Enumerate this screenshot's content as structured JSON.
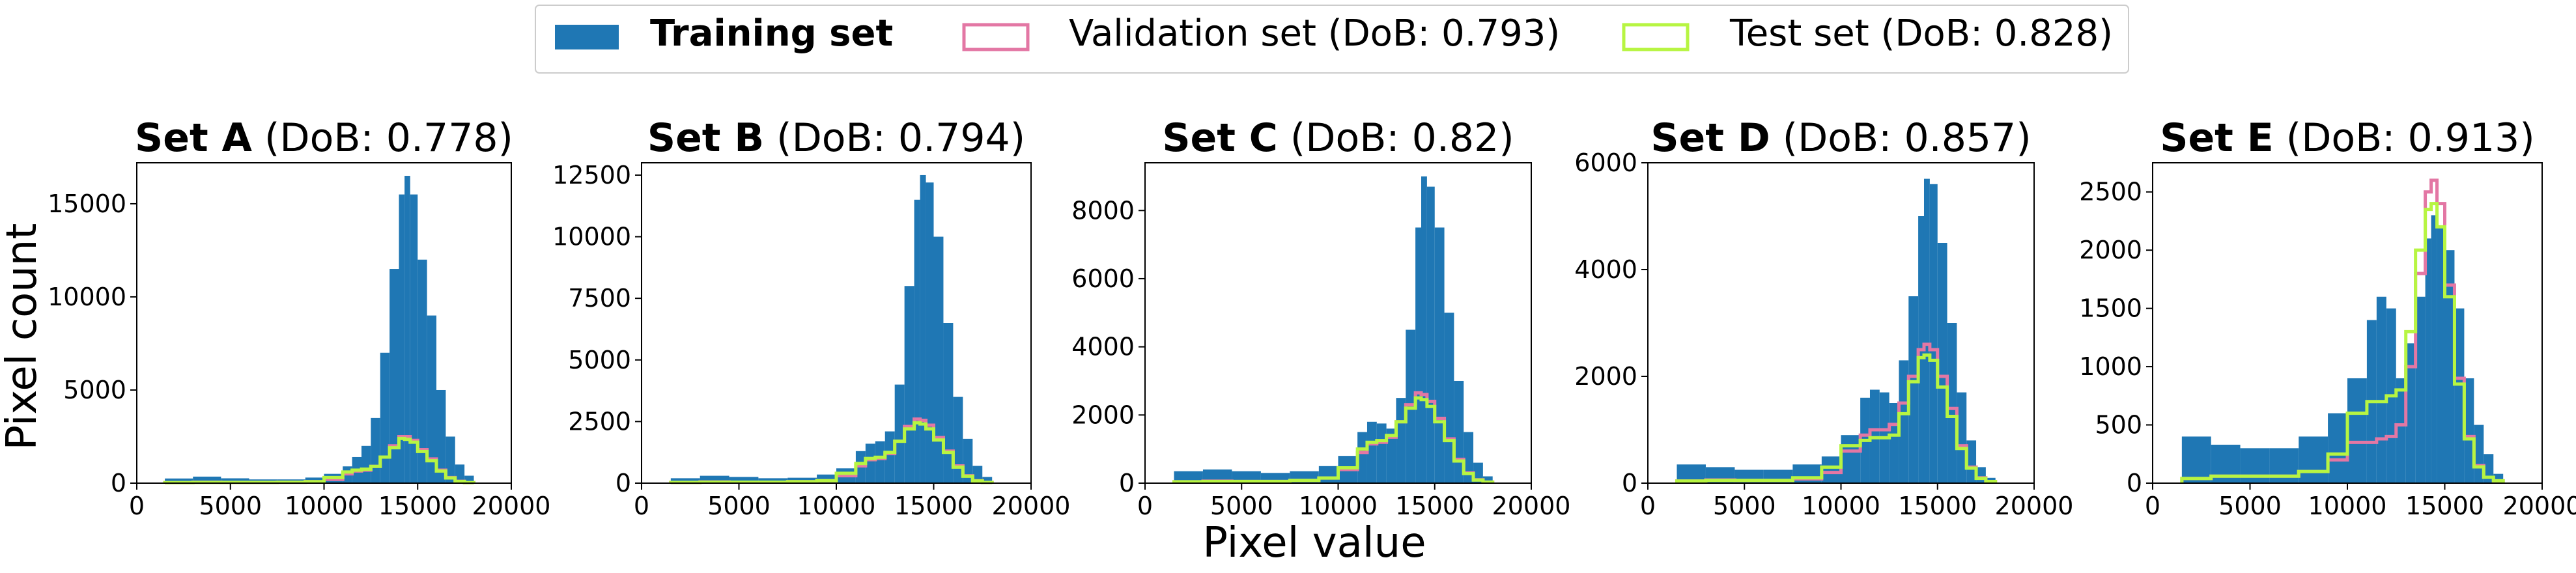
{
  "figure": {
    "ylabel": "Pixel count",
    "xlabel": "Pixel value",
    "legend": [
      {
        "label": "Training set",
        "style": "filled",
        "color": "#1f77b4",
        "bold": true
      },
      {
        "label": "Validation set (DoB: 0.793)",
        "style": "step",
        "color": "#e377a4"
      },
      {
        "label": "Test set (DoB: 0.828)",
        "style": "step",
        "color": "#b7f542"
      }
    ]
  },
  "chart_data": [
    {
      "type": "histogram",
      "title_bold": "Set A",
      "title_rest": " (DoB: 0.778)",
      "xlim": [
        0,
        20000
      ],
      "xticks": [
        0,
        5000,
        10000,
        15000,
        20000
      ],
      "ylim": [
        0,
        17200
      ],
      "yticks": [
        0,
        5000,
        10000,
        15000
      ],
      "x": [
        1500,
        3000,
        4500,
        6000,
        7500,
        9000,
        10000,
        11000,
        11500,
        12000,
        12500,
        13000,
        13500,
        14000,
        14300,
        14600,
        15000,
        15500,
        16000,
        16500,
        17000,
        17500,
        18000
      ],
      "series": [
        {
          "name": "Training set",
          "values": [
            250,
            350,
            260,
            200,
            200,
            300,
            500,
            900,
            1400,
            2000,
            3500,
            7000,
            11500,
            15500,
            16500,
            15500,
            12000,
            9000,
            5000,
            2500,
            1000,
            400,
            0
          ]
        },
        {
          "name": "Validation set",
          "values": [
            30,
            50,
            40,
            40,
            50,
            80,
            200,
            500,
            650,
            700,
            900,
            1400,
            2000,
            2500,
            2500,
            2300,
            1800,
            1300,
            700,
            300,
            100,
            30,
            0
          ]
        },
        {
          "name": "Test set",
          "values": [
            30,
            40,
            40,
            40,
            50,
            80,
            300,
            600,
            700,
            750,
            900,
            1400,
            1900,
            2400,
            2350,
            2200,
            1700,
            1200,
            650,
            280,
            90,
            30,
            0
          ]
        }
      ]
    },
    {
      "type": "histogram",
      "title_bold": "Set B",
      "title_rest": " (DoB: 0.794)",
      "xlim": [
        0,
        20000
      ],
      "xticks": [
        0,
        5000,
        10000,
        15000,
        20000
      ],
      "ylim": [
        0,
        13000
      ],
      "yticks": [
        0,
        2500,
        5000,
        7500,
        10000,
        12500
      ],
      "x": [
        1500,
        3000,
        4500,
        6000,
        7500,
        9000,
        10000,
        11000,
        11500,
        12000,
        12500,
        13000,
        13500,
        14000,
        14300,
        14600,
        15000,
        15500,
        16000,
        16500,
        17000,
        17500,
        18000
      ],
      "series": [
        {
          "name": "Training set",
          "values": [
            200,
            300,
            250,
            200,
            220,
            350,
            600,
            1300,
            1600,
            1700,
            2100,
            4000,
            8000,
            11500,
            12500,
            12200,
            10000,
            6500,
            3500,
            1800,
            700,
            250,
            0
          ]
        },
        {
          "name": "Validation set",
          "values": [
            30,
            50,
            40,
            40,
            60,
            100,
            300,
            700,
            950,
            1000,
            1200,
            1700,
            2300,
            2600,
            2550,
            2350,
            1850,
            1300,
            700,
            300,
            100,
            30,
            0
          ]
        },
        {
          "name": "Test set",
          "values": [
            30,
            40,
            40,
            40,
            60,
            100,
            400,
            800,
            1000,
            1050,
            1250,
            1700,
            2200,
            2450,
            2400,
            2200,
            1750,
            1250,
            650,
            280,
            90,
            30,
            0
          ]
        }
      ]
    },
    {
      "type": "histogram",
      "title_bold": "Set C",
      "title_rest": " (DoB: 0.82)",
      "xlim": [
        0,
        20000
      ],
      "xticks": [
        0,
        5000,
        10000,
        15000,
        20000
      ],
      "ylim": [
        0,
        9400
      ],
      "yticks": [
        0,
        2000,
        4000,
        6000,
        8000
      ],
      "x": [
        1500,
        3000,
        4500,
        6000,
        7500,
        9000,
        10000,
        11000,
        11500,
        12000,
        12500,
        13000,
        13500,
        14000,
        14300,
        14600,
        15000,
        15500,
        16000,
        16500,
        17000,
        17500,
        18000
      ],
      "series": [
        {
          "name": "Training set",
          "values": [
            350,
            400,
            350,
            300,
            350,
            500,
            800,
            1500,
            1800,
            1750,
            1600,
            2500,
            4500,
            7500,
            9000,
            8700,
            7500,
            5000,
            3000,
            1500,
            600,
            200,
            0
          ]
        },
        {
          "name": "Validation set",
          "values": [
            40,
            60,
            50,
            50,
            80,
            150,
            400,
            900,
            1150,
            1200,
            1350,
            1800,
            2300,
            2650,
            2600,
            2400,
            1900,
            1300,
            700,
            300,
            100,
            30,
            0
          ]
        },
        {
          "name": "Test set",
          "values": [
            40,
            50,
            50,
            50,
            80,
            150,
            450,
            1000,
            1200,
            1250,
            1400,
            1800,
            2200,
            2500,
            2450,
            2250,
            1800,
            1250,
            650,
            280,
            90,
            30,
            0
          ]
        }
      ]
    },
    {
      "type": "histogram",
      "title_bold": "Set D",
      "title_rest": " (DoB: 0.857)",
      "xlim": [
        0,
        20000
      ],
      "xticks": [
        0,
        5000,
        10000,
        15000,
        20000
      ],
      "ylim": [
        0,
        6000
      ],
      "yticks": [
        0,
        2000,
        4000,
        6000
      ],
      "x": [
        1500,
        3000,
        4500,
        6000,
        7500,
        9000,
        10000,
        11000,
        11500,
        12000,
        12500,
        13000,
        13500,
        14000,
        14300,
        14600,
        15000,
        15500,
        16000,
        16500,
        17000,
        17500,
        18000
      ],
      "series": [
        {
          "name": "Training set",
          "values": [
            350,
            300,
            250,
            250,
            350,
            500,
            900,
            1600,
            1750,
            1700,
            1500,
            2300,
            3500,
            5000,
            5700,
            5600,
            4500,
            3000,
            1700,
            800,
            300,
            100,
            0
          ]
        },
        {
          "name": "Validation set",
          "values": [
            40,
            60,
            50,
            50,
            80,
            200,
            600,
            900,
            1000,
            1000,
            1100,
            1500,
            2000,
            2500,
            2600,
            2500,
            2000,
            1400,
            700,
            300,
            100,
            30,
            0
          ]
        },
        {
          "name": "Test set",
          "values": [
            40,
            50,
            50,
            50,
            100,
            300,
            700,
            800,
            850,
            850,
            900,
            1300,
            1900,
            2350,
            2400,
            2300,
            1800,
            1250,
            650,
            280,
            90,
            30,
            0
          ]
        }
      ]
    },
    {
      "type": "histogram",
      "title_bold": "Set E",
      "title_rest": " (DoB: 0.913)",
      "xlim": [
        0,
        20000
      ],
      "xticks": [
        0,
        5000,
        10000,
        15000,
        20000
      ],
      "ylim": [
        0,
        2750
      ],
      "yticks": [
        0,
        500,
        1000,
        1500,
        2000,
        2500
      ],
      "x": [
        1500,
        3000,
        4500,
        6000,
        7500,
        9000,
        10000,
        11000,
        11500,
        12000,
        12500,
        13000,
        13500,
        14000,
        14300,
        14600,
        15000,
        15500,
        16000,
        16500,
        17000,
        17500,
        18000
      ],
      "series": [
        {
          "name": "Training set",
          "values": [
            400,
            330,
            300,
            300,
            400,
            600,
            900,
            1400,
            1600,
            1500,
            900,
            1200,
            1600,
            2100,
            2300,
            2200,
            2000,
            1500,
            900,
            500,
            250,
            80,
            0
          ]
        },
        {
          "name": "Validation set",
          "values": [
            40,
            60,
            60,
            60,
            100,
            200,
            350,
            350,
            380,
            400,
            500,
            1000,
            1800,
            2500,
            2600,
            2400,
            1700,
            900,
            400,
            150,
            50,
            20,
            0
          ]
        },
        {
          "name": "Test set",
          "values": [
            40,
            60,
            60,
            60,
            100,
            250,
            600,
            700,
            700,
            750,
            800,
            1300,
            2000,
            2350,
            2400,
            2200,
            1600,
            850,
            380,
            140,
            50,
            20,
            0
          ]
        }
      ]
    }
  ]
}
